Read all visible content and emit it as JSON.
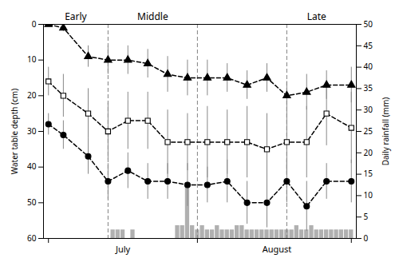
{
  "chart_data": {
    "type": "line",
    "ylabel": "Water table depth (cm)",
    "y2label": "Daily rainfall (mm)",
    "xlim": [
      0,
      63
    ],
    "xticks": [
      1,
      31,
      62
    ],
    "tick_labels": "y",
    "ylim": [
      60,
      0
    ],
    "yticks": [
      0,
      10,
      20,
      30,
      40,
      50,
      60
    ],
    "y2lim": [
      0,
      50
    ],
    "y2ticks": [
      0,
      5,
      10,
      15,
      20,
      25,
      30,
      35,
      40,
      45,
      50
    ],
    "vlines": {
      "x": [
        13,
        31,
        49
      ],
      "color": "#808080",
      "line_style": "dashed"
    },
    "annotations": [
      {
        "text": "Early",
        "x": 6.5,
        "anchor": "top"
      },
      {
        "text": "Middle",
        "x": 22.0,
        "anchor": "top"
      },
      {
        "text": "Late",
        "x": 55.0,
        "anchor": "top"
      },
      {
        "text": "July",
        "x": 16,
        "anchor": "bottom"
      },
      {
        "text": "August",
        "x": 47,
        "anchor": "bottom"
      }
    ],
    "series": [
      {
        "type": "bar",
        "axis": "y2",
        "color": "#b0b0b0",
        "x": [
          1,
          2,
          3,
          4,
          5,
          6,
          7,
          8,
          9,
          10,
          11,
          12,
          13,
          14,
          15,
          16,
          17,
          18,
          19,
          20,
          21,
          22,
          23,
          24,
          25,
          26,
          27,
          28,
          29,
          30,
          31,
          32,
          33,
          34,
          35,
          36,
          37,
          38,
          39,
          40,
          41,
          42,
          43,
          44,
          45,
          46,
          47,
          48,
          49,
          50,
          51,
          52,
          53,
          54,
          55,
          56,
          57,
          58,
          59,
          60,
          61,
          62
        ],
        "values": [
          0,
          0,
          0,
          0,
          0,
          0,
          0,
          0,
          0,
          0,
          0,
          0,
          0,
          2,
          2,
          2,
          0,
          2,
          0,
          0,
          0,
          0,
          0,
          0,
          0,
          0,
          3,
          3,
          13,
          3,
          2,
          3,
          2,
          2,
          3,
          2,
          2,
          2,
          3,
          3,
          2,
          2,
          2,
          2,
          2,
          2,
          2,
          2,
          2,
          2,
          3,
          2,
          2,
          3,
          2,
          2,
          2,
          2,
          2,
          2,
          2,
          2
        ]
      },
      {
        "type": "line",
        "color": "#000000",
        "marker": "circle",
        "line_style": "dashed",
        "x": [
          1,
          4,
          9,
          13,
          17,
          21,
          25,
          29,
          33,
          37,
          41,
          45,
          49,
          53,
          57,
          62
        ],
        "values": [
          28,
          31,
          37,
          44,
          41,
          44,
          44,
          45,
          45,
          44,
          50,
          50,
          44,
          51,
          44,
          44
        ],
        "errors": [
          3,
          4,
          5,
          5,
          5,
          5,
          5,
          6,
          5,
          6,
          6,
          7,
          6,
          7,
          5,
          6
        ]
      },
      {
        "type": "line",
        "color": "#000000",
        "marker": "open_square",
        "line_style": "dashed",
        "x": [
          1,
          4,
          9,
          13,
          17,
          21,
          25,
          29,
          33,
          37,
          41,
          45,
          49,
          53,
          57,
          62
        ],
        "values": [
          16,
          20,
          25,
          30,
          27,
          27,
          33,
          33,
          33,
          33,
          33,
          35,
          33,
          33,
          25,
          29
        ],
        "errors": [
          4,
          6,
          7,
          8,
          8,
          8,
          9,
          8,
          10,
          9,
          10,
          10,
          9,
          10,
          9,
          10
        ]
      },
      {
        "type": "line",
        "color": "#000000",
        "marker": "triangle",
        "line_style": "dashed",
        "x": [
          1,
          4,
          9,
          13,
          17,
          21,
          25,
          29,
          33,
          37,
          41,
          45,
          49,
          53,
          57,
          62
        ],
        "values": [
          0,
          1,
          9,
          10,
          10,
          11,
          14,
          15,
          15,
          15,
          17,
          15,
          20,
          19,
          17,
          17
        ],
        "errors": [
          0,
          1,
          3,
          4,
          4,
          4,
          5,
          5,
          5,
          4,
          4,
          4,
          4,
          5,
          4,
          5
        ]
      }
    ]
  }
}
